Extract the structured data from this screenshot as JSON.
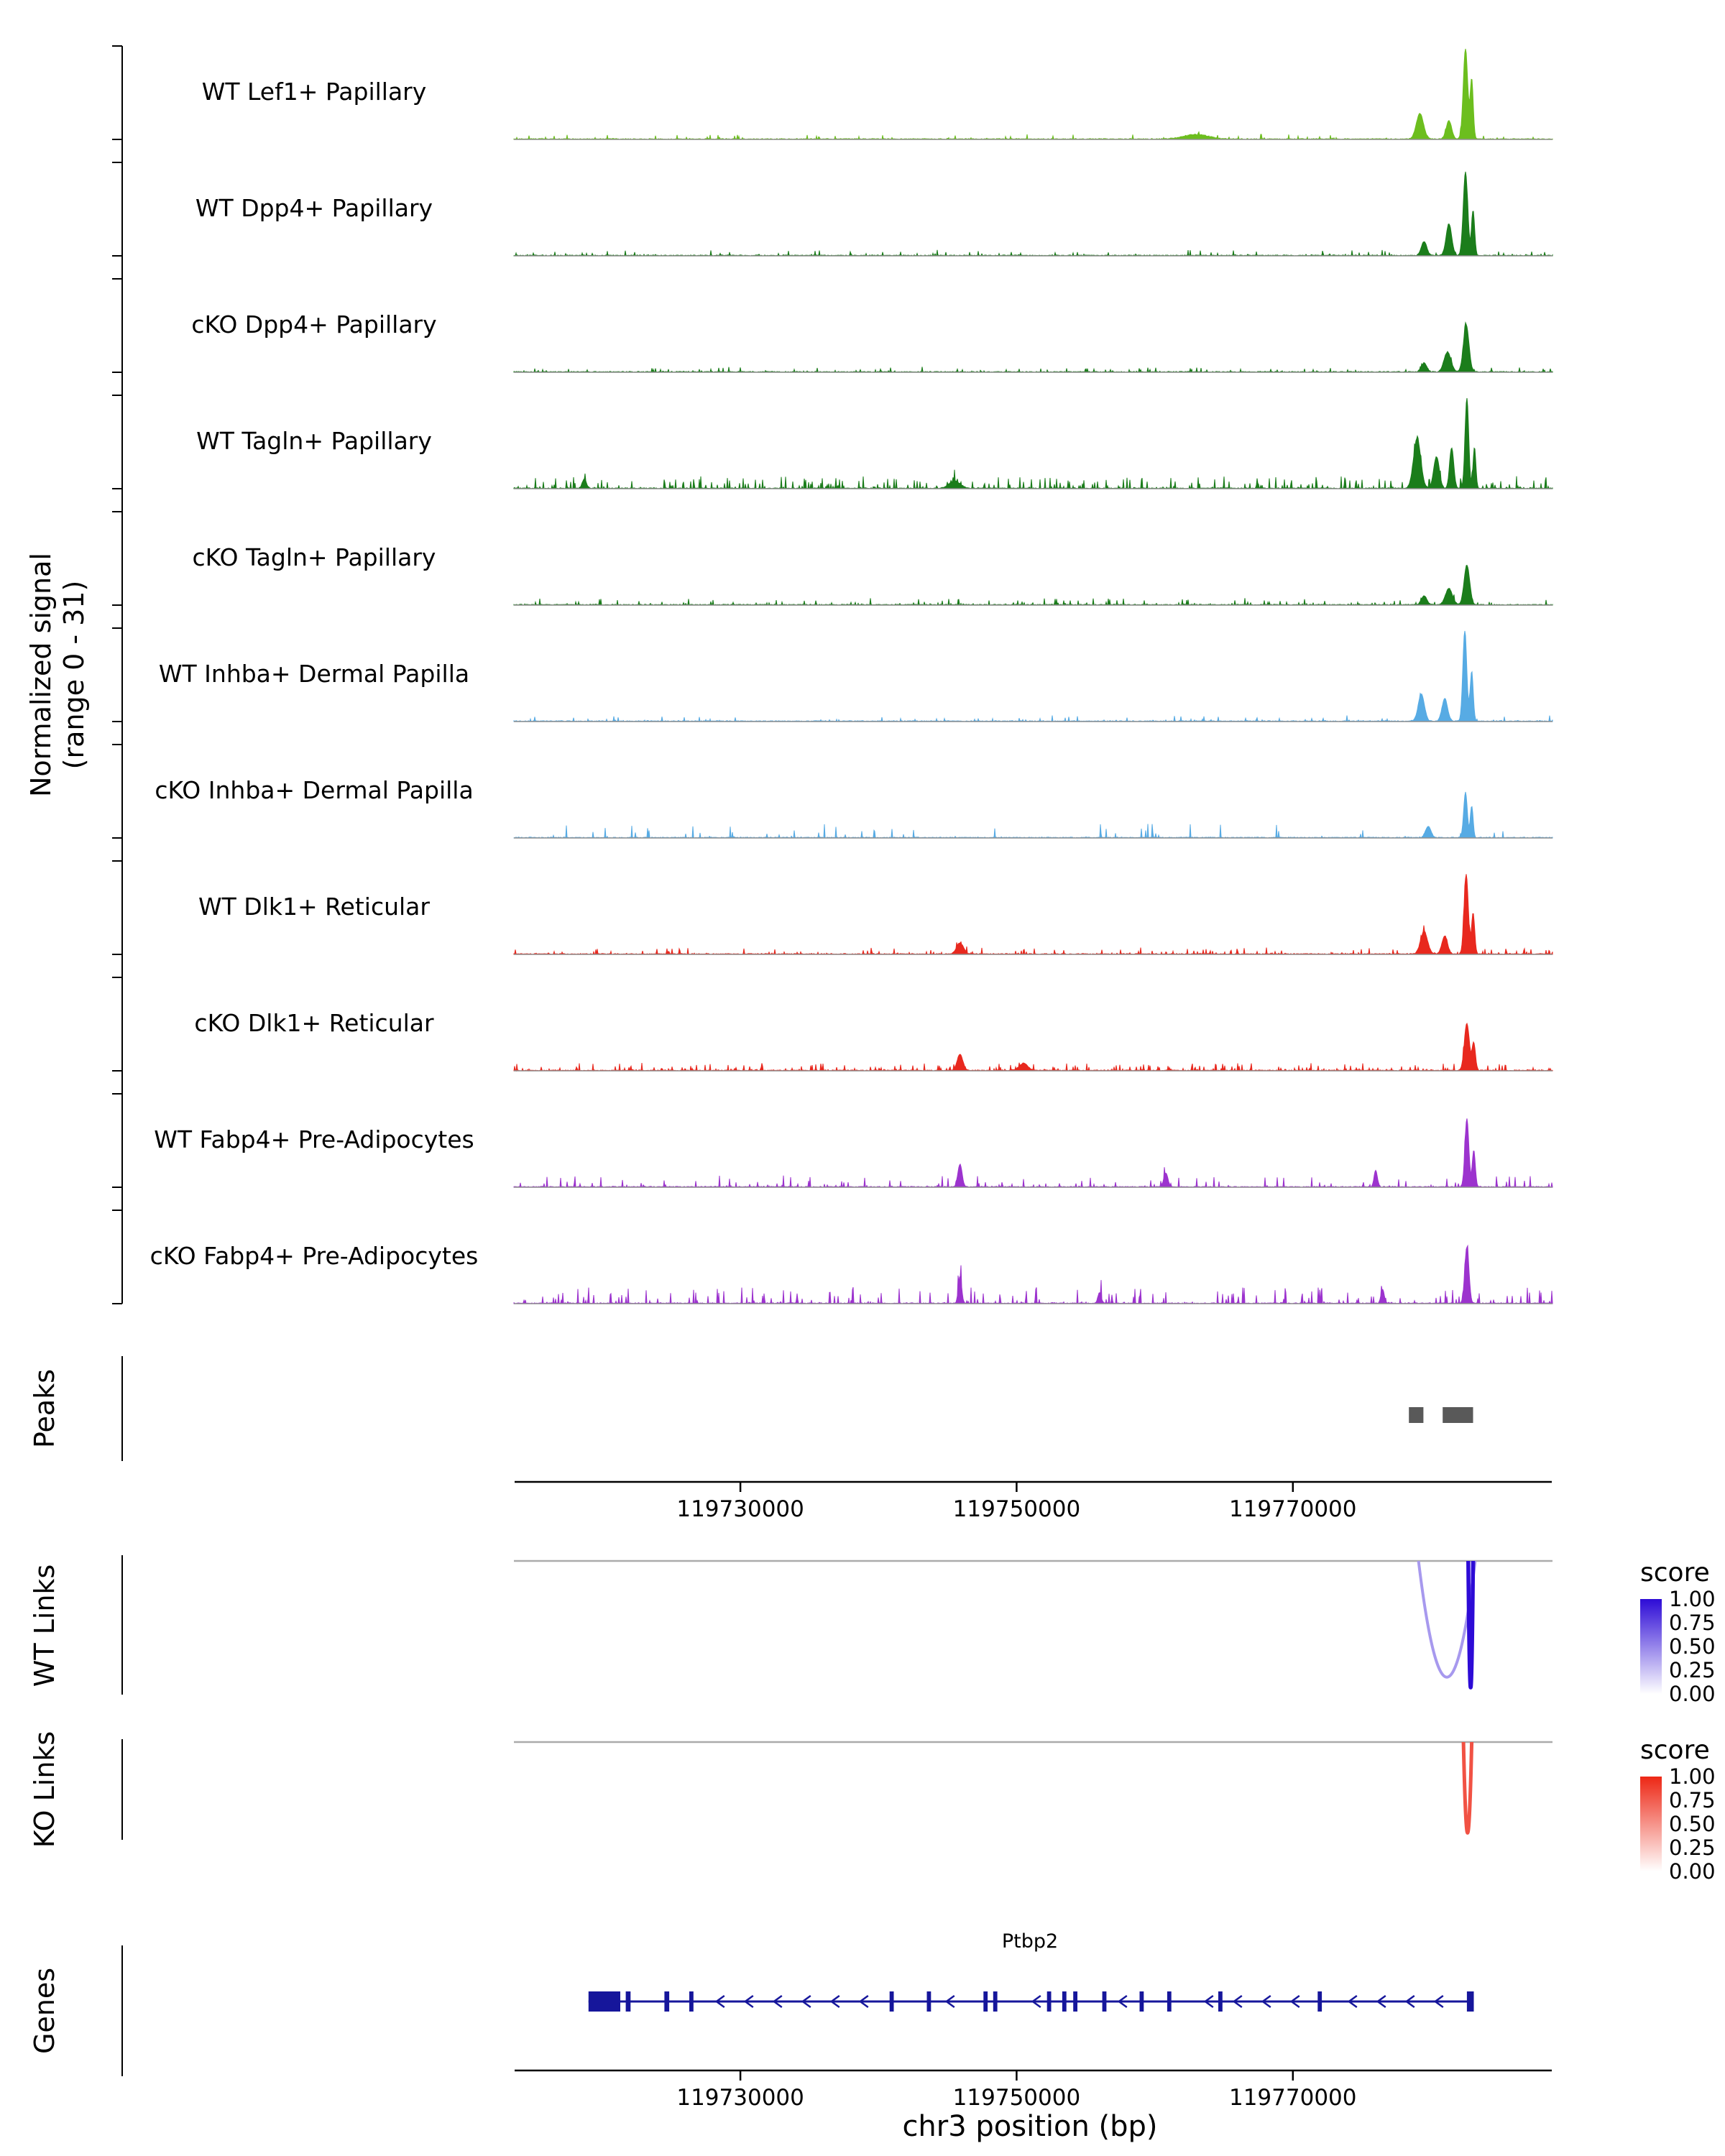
{
  "y_axis": {
    "label_line1": "Normalized signal",
    "label_line2": "(range 0 - 31)"
  },
  "panel_labels": {
    "peaks": "Peaks",
    "wt_links": "WT Links",
    "ko_links": "KO Links",
    "genes": "Genes"
  },
  "x_axis": {
    "label": "chr3 position (bp)",
    "tick_values": [
      119730000,
      119750000,
      119770000
    ],
    "tick_labels": [
      "119730000",
      "119750000",
      "119770000"
    ]
  },
  "chart_data": {
    "type": "area",
    "title": "",
    "region": {
      "chrom": "chr3",
      "start": 119713600,
      "end": 119788800
    },
    "signal_range": [
      0,
      31
    ],
    "tracks": [
      {
        "name": "WT Lef1+ Papillary",
        "color": "#6CBE1E",
        "seed": 1,
        "spike_density": 0.06,
        "spike_max": 0.05,
        "bumps": [
          [
            119779200,
            0.28,
            260
          ],
          [
            119781300,
            0.2,
            200
          ],
          [
            119782500,
            1.0,
            160
          ],
          [
            119782950,
            0.65,
            110
          ],
          [
            119763000,
            0.05,
            900
          ]
        ]
      },
      {
        "name": "WT Dpp4+ Papillary",
        "color": "#1B7D1B",
        "seed": 2,
        "spike_density": 0.1,
        "spike_max": 0.06,
        "bumps": [
          [
            119779500,
            0.15,
            200
          ],
          [
            119781300,
            0.35,
            200
          ],
          [
            119782500,
            0.92,
            160
          ],
          [
            119783050,
            0.5,
            110
          ]
        ]
      },
      {
        "name": "cKO Dpp4+ Papillary",
        "color": "#1B7D1B",
        "seed": 3,
        "spike_density": 0.1,
        "spike_max": 0.05,
        "bumps": [
          [
            119779500,
            0.1,
            200
          ],
          [
            119781200,
            0.22,
            250
          ],
          [
            119782550,
            0.52,
            200
          ]
        ]
      },
      {
        "name": "WT Tagln+ Papillary",
        "color": "#1B7D1B",
        "seed": 4,
        "spike_density": 0.22,
        "spike_max": 0.13,
        "bumps": [
          [
            119779000,
            0.55,
            260
          ],
          [
            119780400,
            0.35,
            200
          ],
          [
            119781500,
            0.45,
            150
          ],
          [
            119782600,
            1.0,
            130
          ],
          [
            119783150,
            0.45,
            100
          ],
          [
            119718700,
            0.1,
            150
          ],
          [
            119745500,
            0.08,
            400
          ]
        ]
      },
      {
        "name": "cKO Tagln+ Papillary",
        "color": "#1B7D1B",
        "seed": 5,
        "spike_density": 0.14,
        "spike_max": 0.07,
        "bumps": [
          [
            119779500,
            0.1,
            200
          ],
          [
            119781300,
            0.18,
            250
          ],
          [
            119782600,
            0.44,
            200
          ]
        ]
      },
      {
        "name": "WT Inhba+ Dermal Papilla",
        "color": "#57ABE4",
        "seed": 6,
        "spike_density": 0.1,
        "spike_max": 0.06,
        "bumps": [
          [
            119779300,
            0.3,
            220
          ],
          [
            119781000,
            0.25,
            200
          ],
          [
            119782450,
            1.0,
            140
          ],
          [
            119782950,
            0.55,
            110
          ]
        ]
      },
      {
        "name": "cKO Inhba+ Dermal Papilla",
        "color": "#57ABE4",
        "seed": 7,
        "spike_density": 0.06,
        "spike_max": 0.15,
        "bumps": [
          [
            119779800,
            0.12,
            200
          ],
          [
            119782500,
            0.5,
            130
          ],
          [
            119782950,
            0.35,
            100
          ]
        ]
      },
      {
        "name": "WT Dlk1+ Reticular",
        "color": "#E8281E",
        "seed": 8,
        "spike_density": 0.16,
        "spike_max": 0.07,
        "bumps": [
          [
            119779500,
            0.25,
            250
          ],
          [
            119781000,
            0.2,
            200
          ],
          [
            119782550,
            0.88,
            150
          ],
          [
            119783050,
            0.45,
            110
          ],
          [
            119745900,
            0.12,
            250
          ]
        ]
      },
      {
        "name": "cKO Dlk1+ Reticular",
        "color": "#E8281E",
        "seed": 9,
        "spike_density": 0.18,
        "spike_max": 0.08,
        "bumps": [
          [
            119782600,
            0.52,
            180
          ],
          [
            119783100,
            0.3,
            120
          ],
          [
            119745900,
            0.18,
            200
          ],
          [
            119750500,
            0.08,
            300
          ]
        ]
      },
      {
        "name": "WT Fabp4+ Pre-Adipocytes",
        "color": "#9C33CE",
        "seed": 10,
        "spike_density": 0.12,
        "spike_max": 0.12,
        "bumps": [
          [
            119782600,
            0.75,
            140
          ],
          [
            119783100,
            0.4,
            110
          ],
          [
            119745900,
            0.25,
            150
          ],
          [
            119760800,
            0.15,
            150
          ],
          [
            119776000,
            0.18,
            120
          ]
        ]
      },
      {
        "name": "cKO Fabp4+ Pre-Adipocytes",
        "color": "#9C33CE",
        "seed": 11,
        "spike_density": 0.16,
        "spike_max": 0.18,
        "bumps": [
          [
            119782600,
            0.62,
            150
          ],
          [
            119745900,
            0.3,
            120
          ],
          [
            119756000,
            0.12,
            120
          ],
          [
            119776500,
            0.15,
            120
          ]
        ]
      }
    ],
    "peaks": [
      {
        "start": 119778400,
        "end": 119779450
      },
      {
        "start": 119780850,
        "end": 119783050
      }
    ],
    "peak_color": "#595959",
    "links": {
      "wt": [
        {
          "start": 119779100,
          "end": 119783200,
          "score": 0.42
        },
        {
          "start": 119782700,
          "end": 119783050,
          "score": 1.0
        }
      ],
      "ko": [
        {
          "start": 119782350,
          "end": 119782950,
          "score": 0.8
        }
      ]
    },
    "score_legends": {
      "wt": {
        "title": "score",
        "high": "#2D0BD6",
        "low": "#FFFFFF",
        "labels": [
          "1.00",
          "0.75",
          "0.50",
          "0.25",
          "0.00"
        ]
      },
      "ko": {
        "title": "score",
        "high": "#ED2715",
        "low": "#FFFFFF",
        "labels": [
          "1.00",
          "0.75",
          "0.50",
          "0.25",
          "0.00"
        ]
      }
    },
    "gene": {
      "name": "Ptbp2",
      "chrom": "chr3",
      "start": 119719000,
      "end": 119783100,
      "strand": "-",
      "color": "#16169B",
      "exons": [
        [
          119719000,
          119721300
        ],
        [
          119721700,
          119722050
        ],
        [
          119724500,
          119724850
        ],
        [
          119726300,
          119726600
        ],
        [
          119740800,
          119741100
        ],
        [
          119743500,
          119743800
        ],
        [
          119747600,
          119747900
        ],
        [
          119748300,
          119748600
        ],
        [
          119752200,
          119752500
        ],
        [
          119753300,
          119753600
        ],
        [
          119754100,
          119754400
        ],
        [
          119756200,
          119756500
        ],
        [
          119758900,
          119759200
        ],
        [
          119760900,
          119761200
        ],
        [
          119764600,
          119764900
        ],
        [
          119771800,
          119772100
        ],
        [
          119782600,
          119783100
        ]
      ]
    }
  }
}
